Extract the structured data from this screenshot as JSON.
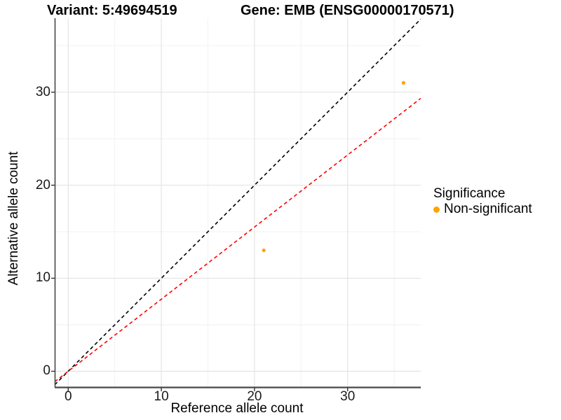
{
  "chart_data": {
    "type": "scatter",
    "titles": {
      "left": "Variant: 5:49694519",
      "right": "Gene: EMB (ENSG00000170571)"
    },
    "xlabel": "Reference allele count",
    "ylabel": "Alternative allele count",
    "x_ticks": [
      0,
      10,
      20,
      30
    ],
    "y_ticks": [
      0,
      10,
      20,
      30
    ],
    "x_minor_ticks": [
      5,
      15,
      25,
      35
    ],
    "y_minor_ticks": [
      5,
      15,
      25,
      35
    ],
    "xlim": [
      -1.45,
      37.85
    ],
    "ylim": [
      -1.7,
      37.95
    ],
    "grid": true,
    "series": [
      {
        "name": "Non-significant",
        "color": "#FFA500",
        "points": [
          {
            "x": 21,
            "y": 13
          },
          {
            "x": 36,
            "y": 31
          }
        ]
      }
    ],
    "reference_lines": [
      {
        "name": "identity-line",
        "slope": 1,
        "intercept": 0,
        "color": "#000000",
        "style": "dashed"
      },
      {
        "name": "expected-ratio-line",
        "slope": 0.775,
        "intercept": 0,
        "color": "#FF0000",
        "style": "dashed"
      }
    ],
    "legend": {
      "position": "right",
      "title": "Significance",
      "items": [
        {
          "label": "Non-significant",
          "color": "#FFA500",
          "marker": "circle"
        }
      ]
    },
    "colors": {
      "point": "#FFA500",
      "grid_major": "#E4E4E4",
      "grid_minor": "#F2F2F2",
      "axis_line": "#474747",
      "tick_mark": "#333333",
      "text": "#000000"
    }
  }
}
